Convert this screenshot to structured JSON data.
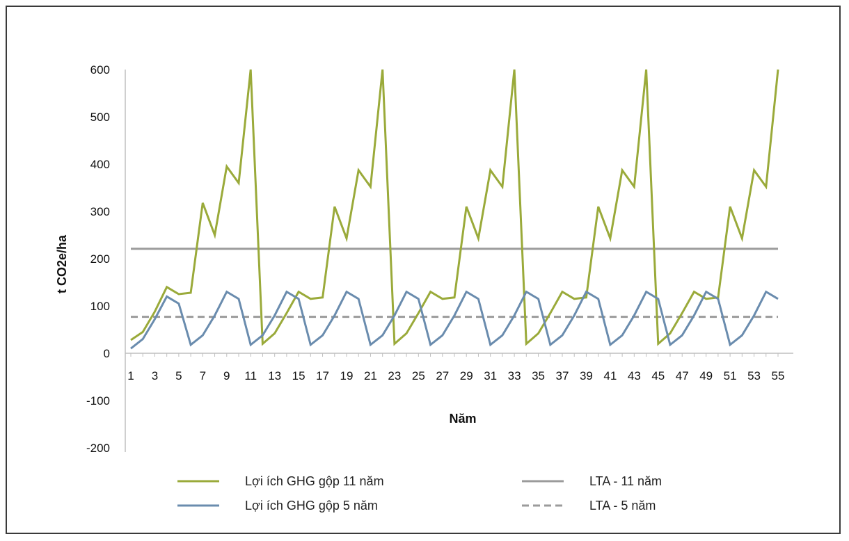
{
  "chart_data": {
    "type": "line",
    "xlabel": "Năm",
    "ylabel": "t CO2e/ha",
    "ylim": [
      -200,
      600
    ],
    "yticks": [
      -200,
      -100,
      0,
      100,
      200,
      300,
      400,
      500,
      600
    ],
    "xlim": [
      1,
      55
    ],
    "xtick_labels": [
      "1",
      "3",
      "5",
      "7",
      "9",
      "11",
      "13",
      "15",
      "17",
      "19",
      "21",
      "23",
      "25",
      "27",
      "29",
      "31",
      "33",
      "35",
      "37",
      "39",
      "41",
      "43",
      "45",
      "47",
      "49",
      "51",
      "53",
      "55"
    ],
    "grid": false,
    "legend_position": "bottom",
    "series": [
      {
        "name": "Lợi ích GHG gộp 11 năm",
        "color": "#9aaa3a",
        "style": "solid",
        "x": [
          1,
          2,
          3,
          4,
          5,
          6,
          7,
          8,
          9,
          10,
          11,
          12,
          13,
          14,
          15,
          16,
          17,
          18,
          19,
          20,
          21,
          22,
          23,
          24,
          25,
          26,
          27,
          28,
          29,
          30,
          31,
          32,
          33,
          34,
          35,
          36,
          37,
          38,
          39,
          40,
          41,
          42,
          43,
          44,
          45,
          46,
          47,
          48,
          49,
          50,
          51,
          52,
          53,
          54,
          55
        ],
        "values": [
          28,
          45,
          88,
          140,
          125,
          128,
          318,
          250,
          395,
          360,
          600,
          20,
          42,
          85,
          130,
          115,
          118,
          310,
          243,
          387,
          352,
          600,
          20,
          42,
          85,
          130,
          115,
          118,
          310,
          243,
          387,
          352,
          600,
          20,
          42,
          85,
          130,
          115,
          118,
          310,
          243,
          387,
          352,
          600,
          20,
          42,
          85,
          130,
          115,
          118,
          310,
          243,
          387,
          352,
          600
        ]
      },
      {
        "name": "Lợi ích GHG gộp 5 năm",
        "color": "#6a8cae",
        "style": "solid",
        "x": [
          1,
          2,
          3,
          4,
          5,
          6,
          7,
          8,
          9,
          10,
          11,
          12,
          13,
          14,
          15,
          16,
          17,
          18,
          19,
          20,
          21,
          22,
          23,
          24,
          25,
          26,
          27,
          28,
          29,
          30,
          31,
          32,
          33,
          34,
          35,
          36,
          37,
          38,
          39,
          40,
          41,
          42,
          43,
          44,
          45,
          46,
          47,
          48,
          49,
          50,
          51,
          52,
          53,
          54,
          55
        ],
        "values": [
          10,
          30,
          72,
          120,
          105,
          18,
          38,
          80,
          130,
          115,
          18,
          38,
          80,
          130,
          115,
          18,
          38,
          80,
          130,
          115,
          18,
          38,
          80,
          130,
          115,
          18,
          38,
          80,
          130,
          115,
          18,
          38,
          80,
          130,
          115,
          18,
          38,
          80,
          130,
          115,
          18,
          38,
          80,
          130,
          115,
          18,
          38,
          80,
          130,
          115,
          18,
          38,
          80,
          130,
          115
        ]
      },
      {
        "name": "LTA - 11 năm",
        "color": "#9b9b9b",
        "style": "solid",
        "x": [
          1,
          55
        ],
        "values": [
          221,
          221
        ]
      },
      {
        "name": "LTA - 5 năm",
        "color": "#9b9b9b",
        "style": "dashed",
        "x": [
          1,
          55
        ],
        "values": [
          77,
          77
        ]
      }
    ]
  }
}
